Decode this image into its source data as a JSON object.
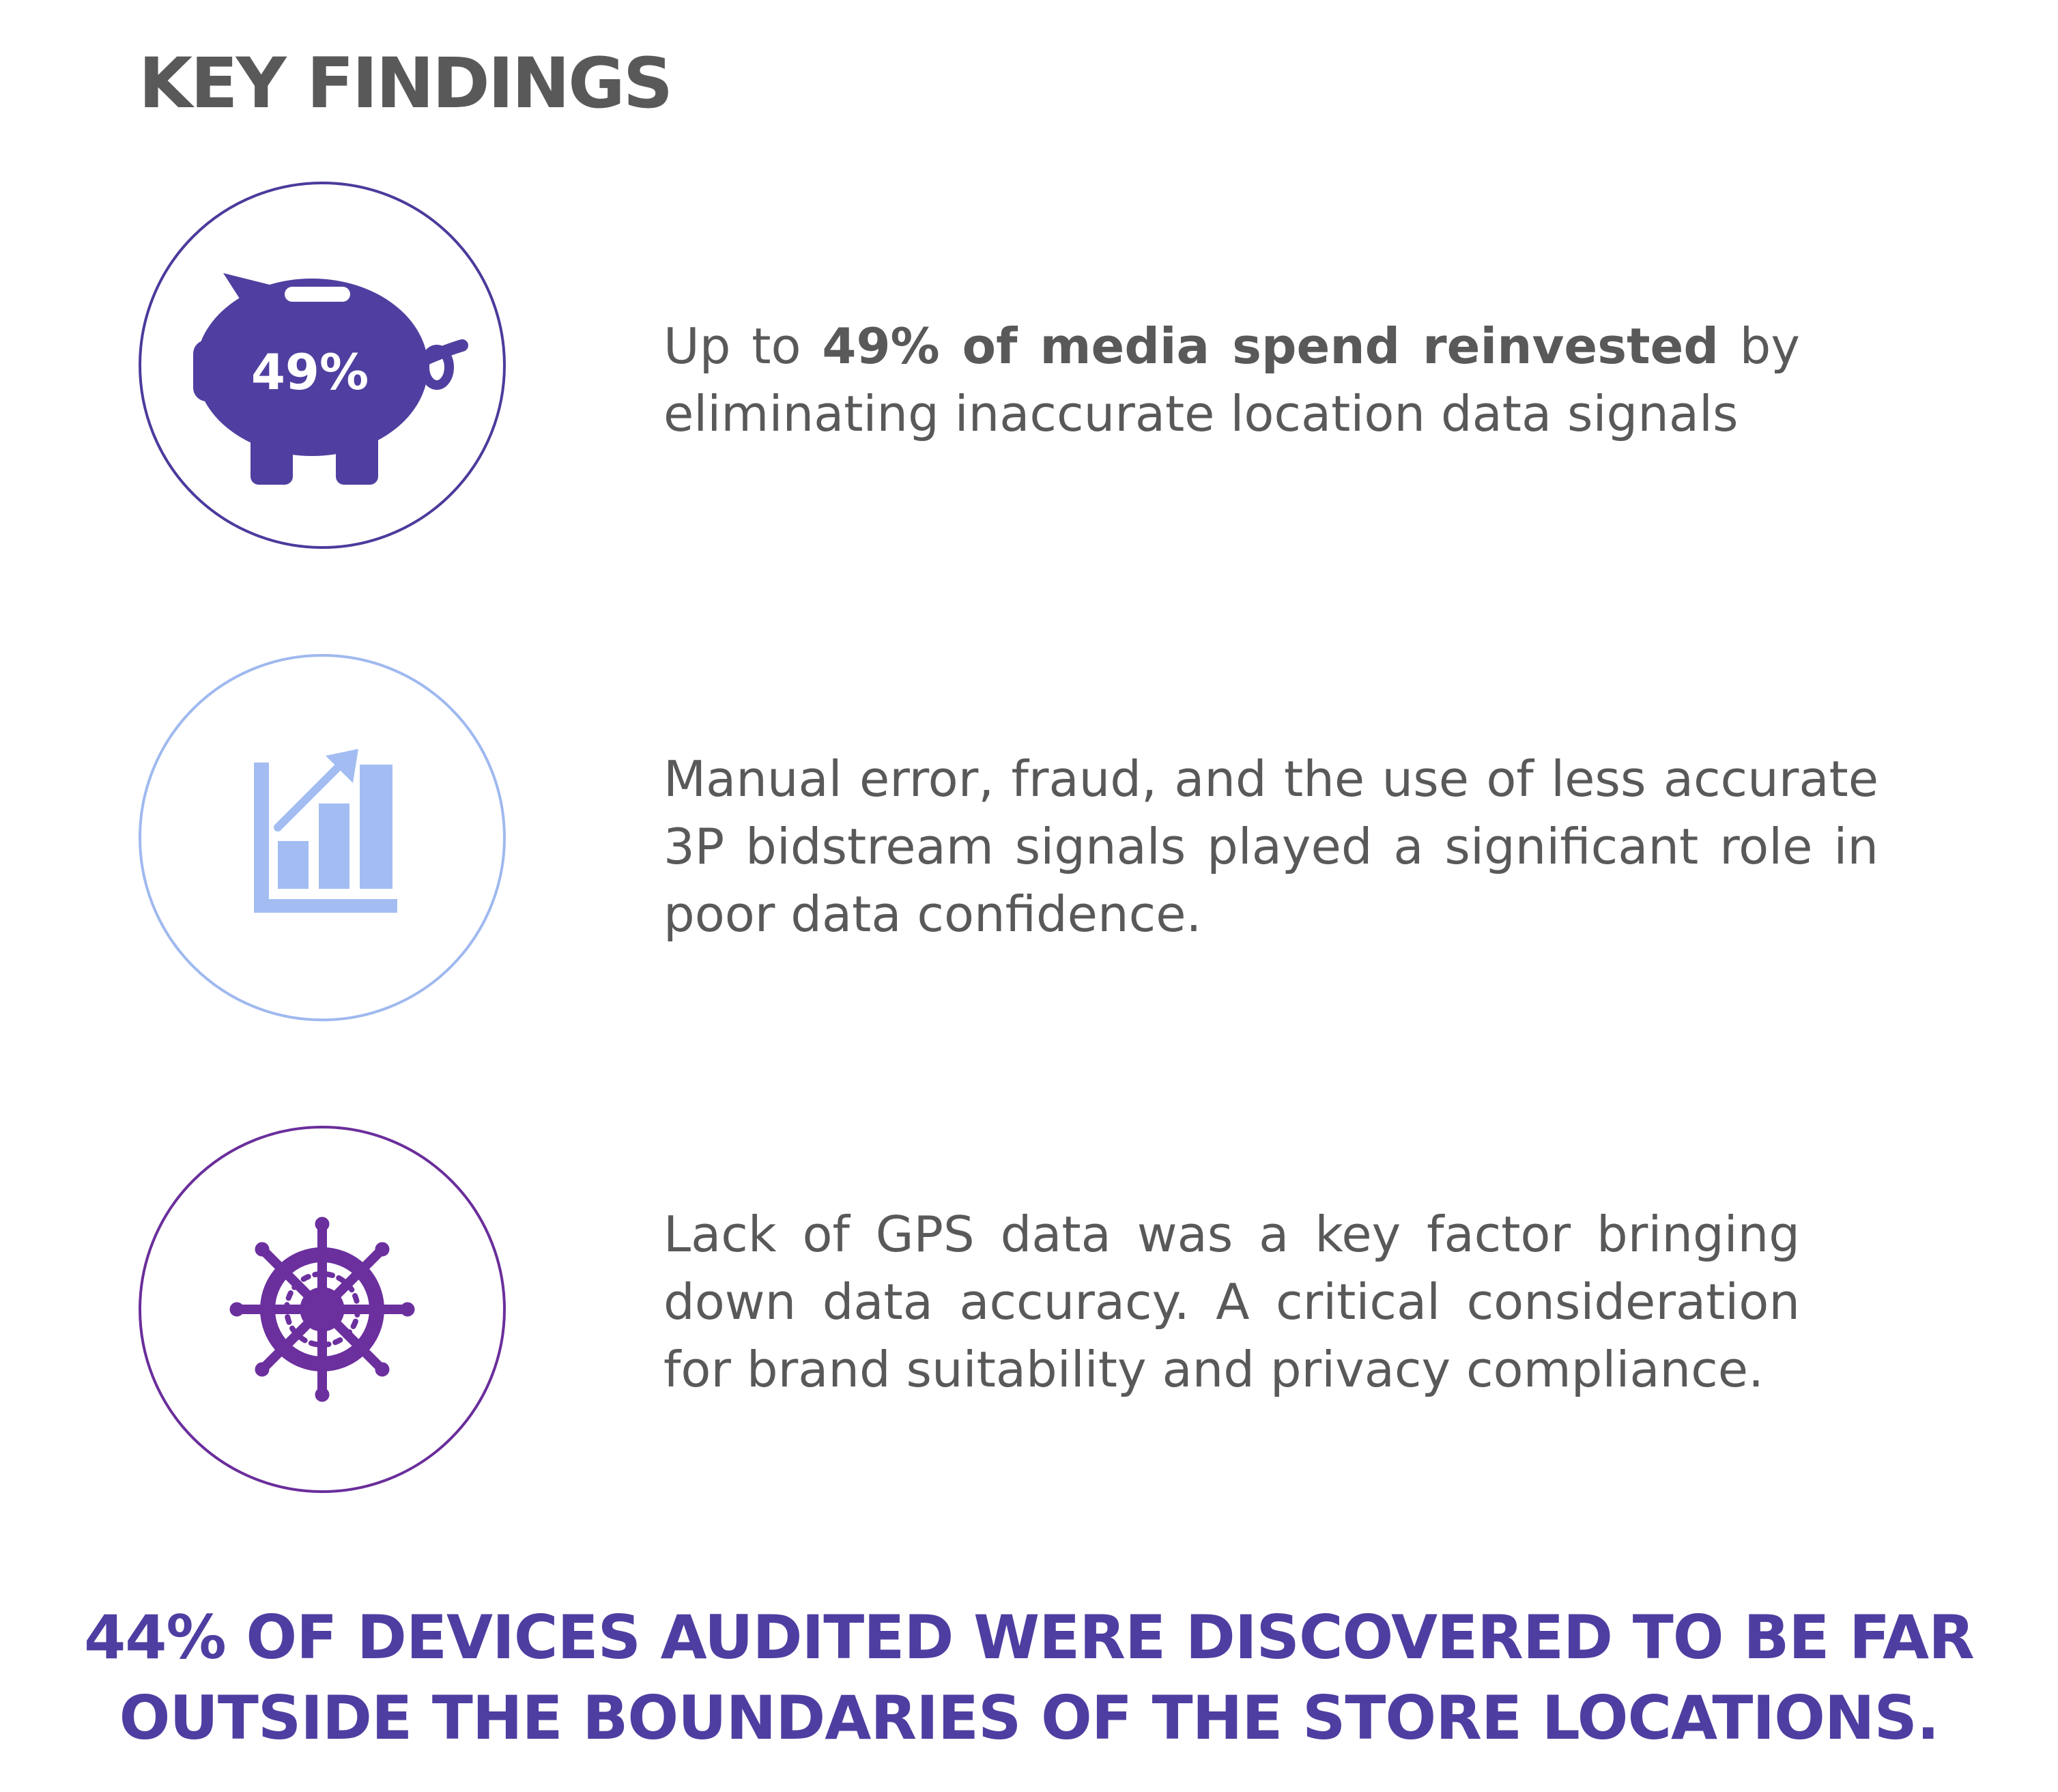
{
  "title": "KEY FINDINGS",
  "findings": [
    {
      "icon": "piggy-bank-icon",
      "icon_label": "49%",
      "text_prefix": "Up to ",
      "text_bold": "49% of media spend reinvested",
      "text_suffix": " by eliminating inaccurate location data signals",
      "ring_color": "#4d3a9c",
      "icon_color": "#503fa0"
    },
    {
      "icon": "bar-chart-growth-icon",
      "text": "Manual error, fraud, and the use of less accurate 3P bidstream signals played a significant role in poor data confidence.",
      "ring_color": "#9fb9ef",
      "icon_color": "#a3bdf2"
    },
    {
      "icon": "ship-wheel-icon",
      "text": "Lack of GPS data was a key factor bringing down data accuracy. A critical consideration for brand suitability and privacy compliance.",
      "ring_color": "#6a2e9b",
      "icon_color": "#6b2f9e"
    }
  ],
  "callout": {
    "line1": "44% OF DEVICES AUDITED WERE DISCOVERED TO BE FAR",
    "line2": "OUTSIDE THE BOUNDARIES OF THE STORE LOCATIONS.",
    "color": "#4e3ea1"
  }
}
